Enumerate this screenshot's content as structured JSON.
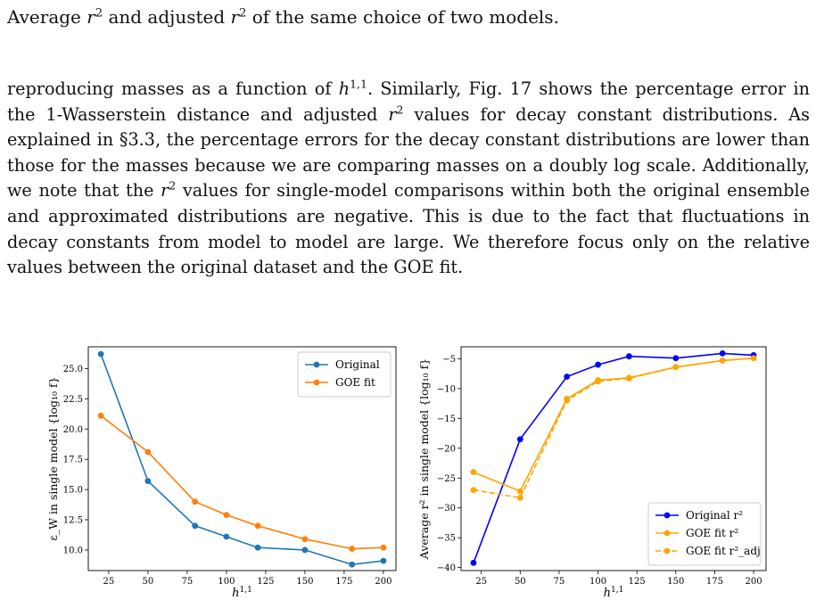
{
  "caption": {
    "p1": "Average ",
    "p2": " and adjusted ",
    "p3": " of the same choice of two models."
  },
  "paragraph": {
    "s1": "reproducing masses as a function of ",
    "s2": ". Similarly, Fig. 17 shows the percentage error in the 1-Wasserstein distance and adjusted ",
    "s3": " values for decay constant distributions. As explained in §3.3, the percentage errors for the decay constant distributions are lower than those for the masses because we are comparing masses on a doubly log scale. Additionally, we note that the ",
    "s4": " values for single-model comparisons within both the original ensemble and approximated distributions are negative. This is due to the fact that fluctuations in decay constants from model to model are large. We therefore focus only on the relative values between the original dataset and the GOE fit."
  },
  "chart_data": [
    {
      "type": "line",
      "x": [
        20,
        50,
        80,
        100,
        120,
        150,
        180,
        200
      ],
      "series": [
        {
          "name": "Original",
          "color": "#1f77b4",
          "values": [
            26.2,
            15.7,
            12.0,
            11.1,
            10.2,
            10.0,
            8.8,
            9.1
          ]
        },
        {
          "name": "GOE fit",
          "color": "#ff7f0e",
          "values": [
            21.1,
            18.1,
            14.0,
            12.9,
            12.0,
            10.9,
            10.1,
            10.2
          ]
        }
      ],
      "xlabel": "h^{1,1}",
      "ylabel": "ε_W in single model {log₁₀ f}",
      "xticks": [
        "25",
        "50",
        "75",
        "100",
        "125",
        "150",
        "175",
        "200"
      ],
      "yticks": [
        "10.0",
        "12.5",
        "15.0",
        "17.5",
        "20.0",
        "22.5",
        "25.0"
      ],
      "xlim": [
        12,
        208
      ],
      "ylim": [
        8.3,
        26.8
      ],
      "legend": "top-right",
      "grid": false
    },
    {
      "type": "line",
      "x": [
        20,
        50,
        80,
        100,
        120,
        150,
        180,
        200
      ],
      "series": [
        {
          "name": "Original r²",
          "color": "#0000ff",
          "style": "solid",
          "values": [
            -39.2,
            -18.5,
            -8.0,
            -6.0,
            -4.6,
            -4.9,
            -4.1,
            -4.4
          ]
        },
        {
          "name": "GOE fit r²",
          "color": "#ffa500",
          "style": "solid",
          "values": [
            -24.0,
            -27.2,
            -11.7,
            -8.6,
            -8.2,
            -6.4,
            -5.3,
            -4.9
          ]
        },
        {
          "name": "GOE fit r²_adj",
          "color": "#ffa500",
          "style": "dashed",
          "values": [
            -27.0,
            -28.3,
            -12.0,
            -8.8,
            -8.3,
            -6.4,
            -5.3,
            -4.9
          ]
        }
      ],
      "xlabel": "h^{1,1}",
      "ylabel": "Average r² in single model {log₁₀ f}",
      "xticks": [
        "25",
        "50",
        "75",
        "100",
        "125",
        "150",
        "175",
        "200"
      ],
      "yticks": [
        "−40",
        "−35",
        "−30",
        "−25",
        "−20",
        "−15",
        "−10",
        "−5"
      ],
      "xlim": [
        12,
        208
      ],
      "ylim": [
        -40.5,
        -3.0
      ],
      "legend": "bottom-right",
      "grid": false
    }
  ]
}
